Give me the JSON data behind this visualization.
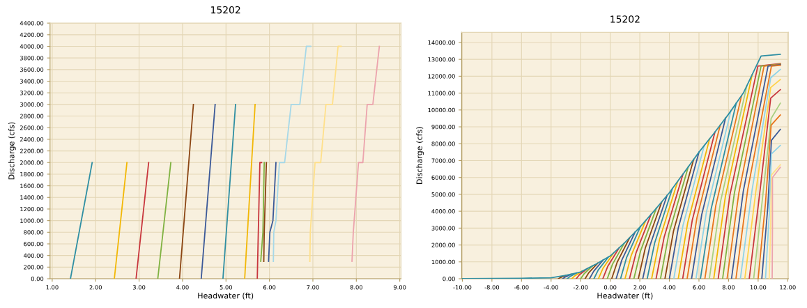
{
  "chart_data": [
    {
      "type": "line",
      "title": "15202",
      "xlabel": "Headwater (ft)",
      "ylabel": "Discharge (cfs)",
      "grid": true,
      "xlim": [
        0.95,
        9.03
      ],
      "ylim": [
        0,
        4400
      ],
      "xticks": [
        {
          "value": 1,
          "label": "1.00"
        },
        {
          "value": 2,
          "label": "2.00"
        },
        {
          "value": 3,
          "label": "3.00"
        },
        {
          "value": 4,
          "label": "4.00"
        },
        {
          "value": 5,
          "label": "5.00"
        },
        {
          "value": 6,
          "label": "6.00"
        },
        {
          "value": 7,
          "label": "7.00"
        },
        {
          "value": 8,
          "label": "8.00"
        },
        {
          "value": 9,
          "label": "9.00"
        }
      ],
      "yticks": [
        {
          "value": 0,
          "label": "0.00"
        },
        {
          "value": 200,
          "label": "200.00"
        },
        {
          "value": 400,
          "label": "400.00"
        },
        {
          "value": 600,
          "label": "600.00"
        },
        {
          "value": 800,
          "label": "800.00"
        },
        {
          "value": 1000,
          "label": "1000.00"
        },
        {
          "value": 1200,
          "label": "1200.00"
        },
        {
          "value": 1400,
          "label": "1400.00"
        },
        {
          "value": 1600,
          "label": "1600.00"
        },
        {
          "value": 1800,
          "label": "1800.00"
        },
        {
          "value": 2000,
          "label": "2000.00"
        },
        {
          "value": 2200,
          "label": "2200.00"
        },
        {
          "value": 2400,
          "label": "2400.00"
        },
        {
          "value": 2600,
          "label": "2600.00"
        },
        {
          "value": 2800,
          "label": "2800.00"
        },
        {
          "value": 3000,
          "label": "3000.00"
        },
        {
          "value": 3200,
          "label": "3200.00"
        },
        {
          "value": 3400,
          "label": "3400.00"
        },
        {
          "value": 3600,
          "label": "3600.00"
        },
        {
          "value": 3800,
          "label": "3800.00"
        },
        {
          "value": 4000,
          "label": "4000.00"
        },
        {
          "value": 4200,
          "label": "4200.00"
        },
        {
          "value": 4400,
          "label": "4400.00"
        }
      ],
      "series": [
        {
          "color": "#2f8fa3",
          "x": [
            1.42,
            1.92
          ],
          "values": [
            0,
            2000
          ]
        },
        {
          "color": "#f2b705",
          "x": [
            2.43,
            2.72
          ],
          "values": [
            0,
            2000
          ]
        },
        {
          "color": "#c8363d",
          "x": [
            2.93,
            3.22
          ],
          "values": [
            0,
            2000
          ]
        },
        {
          "color": "#7fb241",
          "x": [
            3.43,
            3.73
          ],
          "values": [
            0,
            2000
          ]
        },
        {
          "color": "#8b4513",
          "x": [
            3.93,
            4.25
          ],
          "values": [
            0,
            3000
          ]
        },
        {
          "color": "#3b5998",
          "x": [
            4.43,
            4.75
          ],
          "values": [
            0,
            3000
          ]
        },
        {
          "color": "#2f8fa3",
          "x": [
            4.93,
            5.22
          ],
          "values": [
            0,
            3000
          ]
        },
        {
          "color": "#f2b705",
          "x": [
            5.43,
            5.67
          ],
          "values": [
            0,
            3000
          ]
        },
        {
          "color": "#c8363d",
          "x": [
            5.72,
            5.78,
            5.82
          ],
          "values": [
            0,
            2000,
            2000
          ]
        },
        {
          "color": "#7fb241",
          "x": [
            5.8,
            5.85,
            5.88
          ],
          "values": [
            300,
            800,
            2000
          ]
        },
        {
          "color": "#8b4513",
          "x": [
            5.87,
            5.88,
            5.93
          ],
          "values": [
            300,
            800,
            2000
          ]
        },
        {
          "color": "#3b5998",
          "x": [
            5.98,
            6.01,
            6.08,
            6.15
          ],
          "values": [
            300,
            800,
            1000,
            2000
          ]
        },
        {
          "color": "#a6d8e8",
          "x": [
            6.09,
            6.1,
            6.15,
            6.23,
            6.35,
            6.5,
            6.7,
            6.85,
            6.95
          ],
          "values": [
            300,
            800,
            1000,
            2000,
            2000,
            3000,
            3000,
            4000,
            4000
          ]
        },
        {
          "color": "#ffe08a",
          "x": [
            6.93,
            6.94,
            7.05,
            7.18,
            7.3,
            7.45,
            7.58,
            7.65
          ],
          "values": [
            300,
            800,
            2000,
            2000,
            3000,
            3000,
            4000,
            4000
          ]
        },
        {
          "color": "#eca3ad",
          "x": [
            7.9,
            7.93,
            7.95,
            8.05,
            8.15,
            8.25,
            8.38,
            8.53
          ],
          "values": [
            300,
            800,
            1000,
            2000,
            2000,
            3000,
            3000,
            4000
          ]
        }
      ]
    },
    {
      "type": "line",
      "title": "15202",
      "xlabel": "Headwater (ft)",
      "ylabel": "Discharge (cfs)",
      "grid": true,
      "xlim": [
        -10.05,
        12.05
      ],
      "ylim": [
        0,
        14600
      ],
      "xticks": [
        {
          "value": -10,
          "label": "-10.00"
        },
        {
          "value": -8,
          "label": "-8.00"
        },
        {
          "value": -6,
          "label": "-6.00"
        },
        {
          "value": -4,
          "label": "-4.00"
        },
        {
          "value": -2,
          "label": "-2.00"
        },
        {
          "value": 0,
          "label": "0.00"
        },
        {
          "value": 2,
          "label": "2.00"
        },
        {
          "value": 4,
          "label": "4.00"
        },
        {
          "value": 6,
          "label": "6.00"
        },
        {
          "value": 8,
          "label": "8.00"
        },
        {
          "value": 10,
          "label": "10.00"
        },
        {
          "value": 12,
          "label": "12.00"
        }
      ],
      "yticks": [
        {
          "value": 0,
          "label": "0.00"
        },
        {
          "value": 1000,
          "label": "1000.00"
        },
        {
          "value": 2000,
          "label": "2000.00"
        },
        {
          "value": 3000,
          "label": "3000.00"
        },
        {
          "value": 4000,
          "label": "4000.00"
        },
        {
          "value": 5000,
          "label": "5000.00"
        },
        {
          "value": 6000,
          "label": "6000.00"
        },
        {
          "value": 7000,
          "label": "7000.00"
        },
        {
          "value": 8000,
          "label": "8000.00"
        },
        {
          "value": 9000,
          "label": "9000.00"
        },
        {
          "value": 10000,
          "label": "10000.00"
        },
        {
          "value": 11000,
          "label": "11000.00"
        },
        {
          "value": 12000,
          "label": "12000.00"
        },
        {
          "value": 13000,
          "label": "13000.00"
        },
        {
          "value": 14000,
          "label": "14000.00"
        }
      ],
      "series": [
        {
          "color": "#8b4513",
          "x": [
            -3.5,
            -3.35,
            -3.0
          ],
          "values": [
            0,
            80,
            200
          ]
        },
        {
          "color": "#3b5998",
          "x": [
            -3.2,
            -3.03,
            -2.64
          ],
          "values": [
            0,
            110,
            270
          ]
        },
        {
          "color": "#2f8fa3",
          "x": [
            -2.9,
            -2.71,
            -2.28
          ],
          "values": [
            0,
            140,
            340
          ]
        },
        {
          "color": "#f2b705",
          "x": [
            -2.6,
            -2.4,
            -1.92
          ],
          "values": [
            0,
            170,
            440
          ]
        },
        {
          "color": "#c8363d",
          "x": [
            -2.3,
            -2.08,
            -1.56
          ],
          "values": [
            0,
            240,
            600
          ]
        },
        {
          "color": "#7fb241",
          "x": [
            -2.0,
            -1.76,
            -1.2
          ],
          "values": [
            0,
            300,
            760
          ]
        },
        {
          "color": "#8b4513",
          "x": [
            -1.7,
            -1.44,
            -0.84
          ],
          "values": [
            0,
            370,
            930
          ]
        },
        {
          "color": "#3b5998",
          "x": [
            -1.4,
            -1.12,
            -0.48
          ],
          "values": [
            0,
            440,
            1110
          ]
        },
        {
          "color": "#2f8fa3",
          "x": [
            -1.1,
            -0.81,
            -0.12
          ],
          "values": [
            0,
            520,
            1290
          ]
        },
        {
          "color": "#f2b705",
          "x": [
            -0.8,
            -0.49,
            0.24
          ],
          "values": [
            0,
            620,
            1540
          ]
        },
        {
          "color": "#c8363d",
          "x": [
            -0.5,
            -0.17,
            0.6
          ],
          "values": [
            0,
            730,
            1830
          ]
        },
        {
          "color": "#7fb241",
          "x": [
            -0.2,
            0.15,
            0.96
          ],
          "values": [
            0,
            850,
            2120
          ]
        },
        {
          "color": "#8b4513",
          "x": [
            0.1,
            0.47,
            1.32
          ],
          "values": [
            0,
            980,
            2440
          ]
        },
        {
          "color": "#3b5998",
          "x": [
            0.4,
            0.78,
            1.68
          ],
          "values": [
            0,
            1100,
            2760
          ]
        },
        {
          "color": "#2f8fa3",
          "x": [
            0.7,
            1.1,
            2.04
          ],
          "values": [
            0,
            1240,
            3090
          ]
        },
        {
          "color": "#f2b705",
          "x": [
            1.0,
            1.42,
            2.4
          ],
          "values": [
            0,
            1380,
            3450
          ]
        },
        {
          "color": "#c8363d",
          "x": [
            1.3,
            1.74,
            2.76
          ],
          "values": [
            0,
            1520,
            3810
          ]
        },
        {
          "color": "#7fb241",
          "x": [
            1.6,
            2.06,
            3.12
          ],
          "values": [
            0,
            1670,
            4180
          ]
        },
        {
          "color": "#8b4513",
          "x": [
            1.9,
            2.37,
            3.48
          ],
          "values": [
            0,
            1820,
            4550
          ]
        },
        {
          "color": "#3b5998",
          "x": [
            2.2,
            2.69,
            3.84
          ],
          "values": [
            0,
            1970,
            4930
          ]
        },
        {
          "color": "#2f8fa3",
          "x": [
            2.5,
            3.01,
            4.2
          ],
          "values": [
            0,
            2140,
            5340
          ]
        },
        {
          "color": "#f2b705",
          "x": [
            2.8,
            3.33,
            4.56
          ],
          "values": [
            0,
            2310,
            5770
          ]
        },
        {
          "color": "#c8363d",
          "x": [
            3.1,
            3.65,
            4.92
          ],
          "values": [
            0,
            2480,
            6200
          ]
        },
        {
          "color": "#7fb241",
          "x": [
            3.4,
            3.96,
            5.28
          ],
          "values": [
            0,
            2650,
            6640
          ]
        },
        {
          "color": "#8b4513",
          "x": [
            3.7,
            4.28,
            5.64
          ],
          "values": [
            0,
            2830,
            7070
          ]
        },
        {
          "color": "#3b5998",
          "x": [
            4.0,
            4.6,
            6.0
          ],
          "values": [
            0,
            3000,
            7500
          ]
        },
        {
          "color": "#8fd3e8",
          "x": [
            4.3,
            4.92,
            6.36
          ],
          "values": [
            0,
            3160,
            7900
          ]
        },
        {
          "color": "#f2b705",
          "x": [
            4.6,
            5.24,
            6.72
          ],
          "values": [
            0,
            3320,
            8290
          ]
        },
        {
          "color": "#c8363d",
          "x": [
            4.9,
            5.55,
            7.08
          ],
          "values": [
            0,
            3480,
            8690
          ]
        },
        {
          "color": "#e8761c",
          "x": [
            5.2,
            5.87,
            7.44
          ],
          "values": [
            0,
            3640,
            9110
          ]
        },
        {
          "color": "#3b5998",
          "x": [
            5.5,
            6.19,
            7.8
          ],
          "values": [
            0,
            3810,
            9520
          ]
        },
        {
          "color": "#8fd3e8",
          "x": [
            5.8,
            6.51,
            8.16
          ],
          "values": [
            0,
            3980,
            9950
          ]
        },
        {
          "color": "#2f8fa3",
          "x": [
            6.1,
            6.83,
            8.52
          ],
          "values": [
            0,
            4160,
            10400
          ]
        },
        {
          "color": "#e8761c",
          "x": [
            6.4,
            7.14,
            8.88
          ],
          "values": [
            0,
            4340,
            10850
          ]
        },
        {
          "color": "#a8d080",
          "x": [
            6.7,
            7.46,
            9.24
          ],
          "values": [
            0,
            4580,
            11440
          ]
        },
        {
          "color": "#f2b705",
          "x": [
            7.0,
            7.78,
            9.6
          ],
          "values": [
            0,
            4840,
            12100
          ]
        },
        {
          "color": "#c8363d",
          "x": [
            7.3,
            8.1,
            9.98,
            11.5
          ],
          "values": [
            0,
            5000,
            12600,
            12750
          ]
        },
        {
          "color": "#7fb241",
          "x": [
            7.6,
            8.4,
            10.2,
            11.5
          ],
          "values": [
            0,
            5100,
            12600,
            12720
          ]
        },
        {
          "color": "#e8761c",
          "x": [
            7.9,
            8.7,
            10.4,
            11.5
          ],
          "values": [
            0,
            5100,
            12600,
            12700
          ]
        },
        {
          "color": "#3b5998",
          "x": [
            8.2,
            9.0,
            10.67,
            11.5
          ],
          "values": [
            0,
            5200,
            12600,
            12680
          ]
        },
        {
          "color": "#e8761c",
          "x": [
            8.5,
            9.3,
            10.9,
            11.5
          ],
          "values": [
            0,
            5300,
            12600,
            12650
          ]
        },
        {
          "color": "#8fd3e8",
          "x": [
            8.8,
            9.6,
            10.85,
            11.5
          ],
          "values": [
            0,
            5300,
            11900,
            12400
          ]
        },
        {
          "color": "#ffd24a",
          "x": [
            9.1,
            9.85,
            10.85,
            11.5
          ],
          "values": [
            0,
            5200,
            11330,
            11800
          ]
        },
        {
          "color": "#c8363d",
          "x": [
            9.4,
            10.1,
            10.85,
            11.5
          ],
          "values": [
            0,
            5000,
            10700,
            11200
          ]
        },
        {
          "color": "#a8d080",
          "x": [
            9.7,
            10.3,
            10.88,
            11.5
          ],
          "values": [
            0,
            4800,
            9500,
            10400
          ]
        },
        {
          "color": "#e8761c",
          "x": [
            10.0,
            10.5,
            10.88,
            11.5
          ],
          "values": [
            0,
            4500,
            9100,
            9700
          ]
        },
        {
          "color": "#3b5998",
          "x": [
            10.25,
            10.65,
            10.9,
            11.5
          ],
          "values": [
            0,
            4200,
            8200,
            8850
          ]
        },
        {
          "color": "#8fd3e8",
          "x": [
            10.5,
            10.75,
            10.9,
            11.5
          ],
          "values": [
            0,
            3800,
            7400,
            7900
          ]
        },
        {
          "color": "#ffe08a",
          "x": [
            10.75,
            10.85,
            10.9,
            11.5
          ],
          "values": [
            0,
            3200,
            6150,
            6750
          ]
        },
        {
          "color": "#eca3ad",
          "x": [
            10.95,
            10.97,
            10.97,
            11.5
          ],
          "values": [
            0,
            3000,
            6000,
            6600
          ]
        },
        {
          "color": "#2f8fa3",
          "x": [
            -10,
            -8,
            -6,
            -4,
            -3,
            -2,
            -1,
            0,
            1,
            2,
            3,
            4,
            5,
            6,
            7,
            8,
            9,
            10.2,
            11.5
          ],
          "values": [
            0,
            10,
            30,
            60,
            200,
            400,
            850,
            1350,
            2150,
            3050,
            4050,
            5100,
            6300,
            7500,
            8600,
            9750,
            11000,
            13200,
            13300
          ]
        }
      ]
    }
  ]
}
